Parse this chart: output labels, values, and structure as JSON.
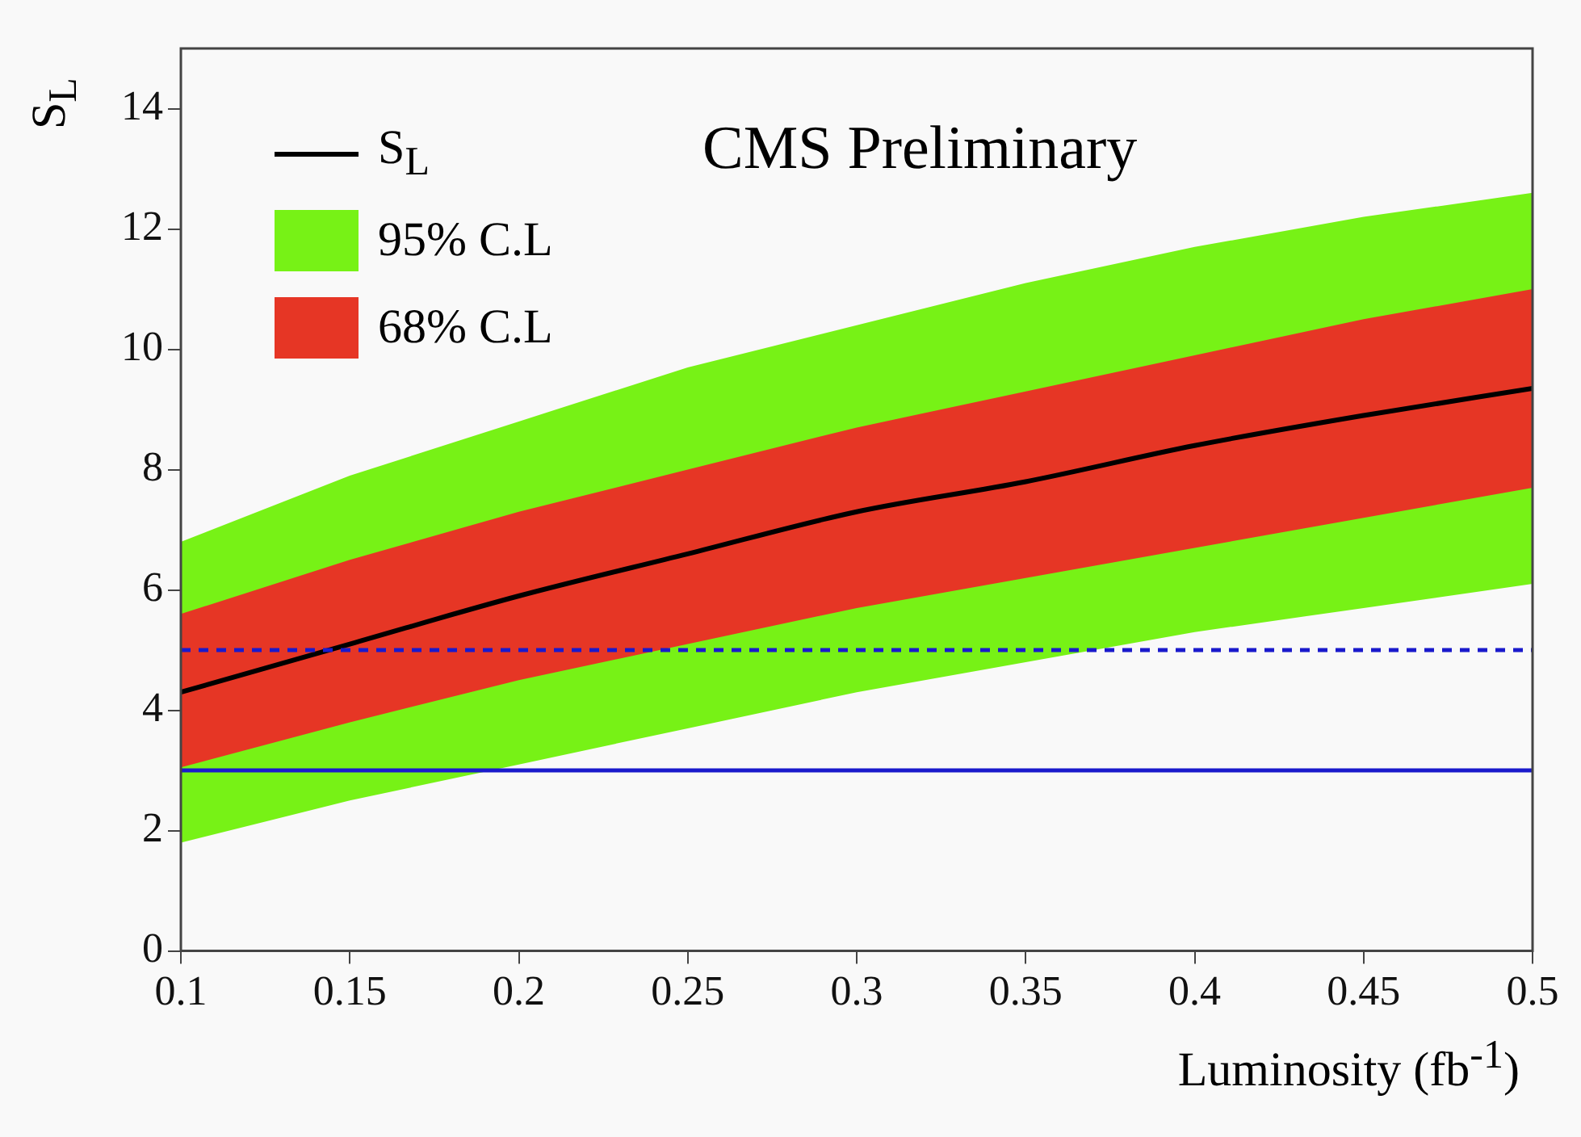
{
  "chart_data": {
    "type": "line",
    "title": "CMS Preliminary",
    "xlabel": "Luminosity (fb$^{-1}$)",
    "ylabel": "S$_{L}$",
    "x": [
      0.1,
      0.15,
      0.2,
      0.25,
      0.3,
      0.35,
      0.4,
      0.45,
      0.5
    ],
    "series": [
      {
        "name": "95% C.L",
        "type": "area",
        "color": "#77f216",
        "values": [
          null,
          null,
          null,
          null,
          null,
          null,
          null,
          null,
          null
        ],
        "lower": [
          1.8,
          2.5,
          3.1,
          3.7,
          4.3,
          4.8,
          5.3,
          5.7,
          6.1
        ],
        "upper": [
          6.8,
          7.9,
          8.8,
          9.7,
          10.4,
          11.1,
          11.7,
          12.2,
          12.6
        ]
      },
      {
        "name": "68% C.L",
        "type": "area",
        "color": "#e63625",
        "values": [
          null,
          null,
          null,
          null,
          null,
          null,
          null,
          null,
          null
        ],
        "lower": [
          3.05,
          3.8,
          4.5,
          5.1,
          5.7,
          6.2,
          6.7,
          7.2,
          7.7
        ],
        "upper": [
          5.6,
          6.5,
          7.3,
          8.0,
          8.7,
          9.3,
          9.9,
          10.5,
          11.0
        ]
      },
      {
        "name": "S$_{L}$",
        "type": "line",
        "color": "#000000",
        "values": [
          4.3,
          5.1,
          5.9,
          6.6,
          7.3,
          7.8,
          8.4,
          8.9,
          9.35
        ]
      }
    ],
    "xlim": [
      0.1,
      0.5
    ],
    "xticks": [
      0.1,
      0.15,
      0.2,
      0.25,
      0.3,
      0.35,
      0.4,
      0.45,
      0.5
    ],
    "ylim": [
      0,
      15
    ],
    "yticks": [
      0,
      2,
      4,
      6,
      8,
      10,
      12,
      14
    ],
    "ref_lines": [
      {
        "axis": "y",
        "value": 5,
        "color": "#1a1acc",
        "line_style": "dashed"
      },
      {
        "axis": "y",
        "value": 3,
        "color": "#1a1acc",
        "line_style": "solid"
      }
    ],
    "legend": "top left",
    "grid": false
  }
}
